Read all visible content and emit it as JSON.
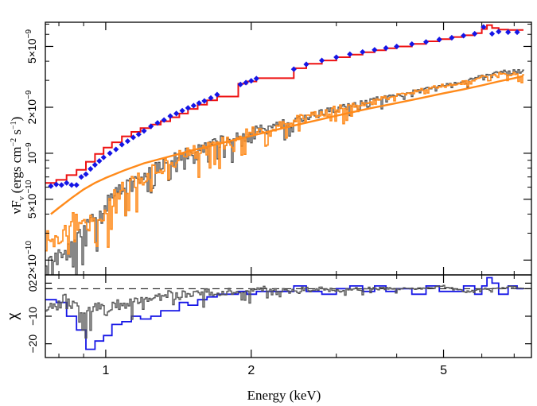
{
  "chart_data": [
    {
      "type": "line",
      "panel": "spectrum",
      "xlabel": "Energy (keV)",
      "ylabel_main": "νF",
      "ylabel_sub": "ν",
      "ylabel_units": "(ergs cm",
      "ylabel_units_sup1": "−2",
      "ylabel_units_mid": " s",
      "ylabel_units_sup2": "−1",
      "ylabel_units_end": ")",
      "x_scale": "log",
      "y_scale": "log",
      "xlim": [
        0.75,
        7.6
      ],
      "ylim": [
        1.6e-10,
        7.2e-09
      ],
      "x_ticks": [
        {
          "value": 1,
          "label": "1"
        },
        {
          "value": 2,
          "label": "2"
        },
        {
          "value": 5,
          "label": "5"
        }
      ],
      "y_ticks": [
        {
          "value": 2e-10,
          "mant": "2×10",
          "exp": "−10"
        },
        {
          "value": 5e-10,
          "mant": "5×10",
          "exp": "−10"
        },
        {
          "value": 1e-09,
          "mant": "10",
          "exp": "−9"
        },
        {
          "value": 2e-09,
          "mant": "2×10",
          "exp": "−9"
        },
        {
          "value": 5e-09,
          "mant": "5×10",
          "exp": "−9"
        }
      ],
      "colors": {
        "blue_data": "#1515e6",
        "red_model": "#ee1111",
        "gray_data": "#555555",
        "orange_model": "#ff8a1a"
      },
      "series": [
        {
          "style": "blue-diamonds",
          "x": [
            0.77,
            0.79,
            0.81,
            0.83,
            0.85,
            0.87,
            0.89,
            0.91,
            0.93,
            0.95,
            0.97,
            0.99,
            1.02,
            1.05,
            1.08,
            1.11,
            1.14,
            1.17,
            1.2,
            1.24,
            1.28,
            1.32,
            1.36,
            1.4,
            1.44,
            1.48,
            1.52,
            1.56,
            1.6,
            1.65,
            1.7,
            1.9,
            1.95,
            2.0,
            2.05,
            2.45,
            2.6,
            2.8,
            3.0,
            3.2,
            3.4,
            3.6,
            3.8,
            4.0,
            4.3,
            4.6,
            4.9,
            5.2,
            5.5,
            5.8,
            6.05,
            6.3,
            6.5,
            6.8,
            7.1
          ],
          "y": [
            6.1e-10,
            6.25e-10,
            6.2e-10,
            6.4e-10,
            6.2e-10,
            6.2e-10,
            7e-10,
            7.3e-10,
            7.9e-10,
            8.4e-10,
            8.9e-10,
            9.4e-10,
            1e-09,
            1.06e-09,
            1.14e-09,
            1.2e-09,
            1.27e-09,
            1.33e-09,
            1.4e-09,
            1.5e-09,
            1.58e-09,
            1.65e-09,
            1.75e-09,
            1.82e-09,
            1.9e-09,
            1.98e-09,
            2.05e-09,
            2.13e-09,
            2.2e-09,
            2.3e-09,
            2.42e-09,
            2.82e-09,
            2.9e-09,
            2.98e-09,
            3.08e-09,
            3.55e-09,
            3.82e-09,
            4.05e-09,
            4.25e-09,
            4.45e-09,
            4.6e-09,
            4.75e-09,
            4.88e-09,
            5e-09,
            5.18e-09,
            5.35e-09,
            5.55e-09,
            5.7e-09,
            5.88e-09,
            6.05e-09,
            6.7e-09,
            6.05e-09,
            6.25e-09,
            6.2e-09,
            6.2e-09
          ]
        },
        {
          "style": "red-step",
          "x": [
            0.75,
            0.79,
            0.83,
            0.87,
            0.91,
            0.95,
            0.99,
            1.03,
            1.08,
            1.13,
            1.18,
            1.24,
            1.3,
            1.36,
            1.42,
            1.48,
            1.55,
            1.62,
            1.7,
            1.88,
            1.96,
            2.05,
            2.45,
            2.6,
            2.8,
            3.0,
            3.2,
            3.4,
            3.6,
            3.8,
            4.0,
            4.3,
            4.6,
            4.9,
            5.2,
            5.5,
            5.8,
            6.0,
            6.15,
            6.3,
            6.5,
            6.8,
            7.1
          ],
          "y": [
            6.4e-10,
            6.7e-10,
            7.2e-10,
            7.8e-10,
            8.8e-10,
            9.9e-10,
            1.09e-09,
            1.18e-09,
            1.29e-09,
            1.38e-09,
            1.46e-09,
            1.54e-09,
            1.62e-09,
            1.72e-09,
            1.82e-09,
            1.95e-09,
            2.08e-09,
            2.22e-09,
            2.35e-09,
            2.85e-09,
            2.95e-09,
            3.1e-09,
            3.6e-09,
            3.85e-09,
            4.05e-09,
            4.25e-09,
            4.42e-09,
            4.58e-09,
            4.72e-09,
            4.86e-09,
            5e-09,
            5.2e-09,
            5.4e-09,
            5.58e-09,
            5.76e-09,
            5.92e-09,
            6.1e-09,
            6.5e-09,
            6.9e-09,
            6.6e-09,
            6.45e-09,
            6.4e-09,
            6.4e-09
          ]
        },
        {
          "style": "gray-noisy-step",
          "x": [
            0.75,
            0.8,
            0.85,
            0.9,
            0.95,
            1.0,
            1.05,
            1.1,
            1.15,
            1.2,
            1.25,
            1.3,
            1.35,
            1.4,
            1.45,
            1.5,
            1.6,
            1.7,
            1.8,
            1.9,
            2.0,
            2.2,
            2.4,
            2.6,
            2.8,
            3.0,
            3.3,
            3.6,
            4.0,
            4.5,
            5.0,
            5.5,
            6.0,
            6.5,
            7.0,
            7.3
          ],
          "y": [
            2.1e-10,
            2.2e-10,
            2.35e-10,
            3.1e-10,
            3.8e-10,
            4.6e-10,
            5.4e-10,
            6.1e-10,
            6.6e-10,
            7.2e-10,
            7.8e-10,
            8.3e-10,
            8.8e-10,
            9.3e-10,
            9.8e-10,
            1.02e-09,
            1.1e-09,
            1.18e-09,
            1.24e-09,
            1.3e-09,
            1.38e-09,
            1.5e-09,
            1.62e-09,
            1.75e-09,
            1.85e-09,
            1.95e-09,
            2.1e-09,
            2.25e-09,
            2.4e-09,
            2.62e-09,
            2.8e-09,
            2.95e-09,
            3.2e-09,
            3.4e-09,
            3.5e-09,
            3.45e-09
          ]
        },
        {
          "style": "orange-noisy-step",
          "x": [
            0.75,
            0.8,
            0.85,
            0.9,
            0.95,
            1.0,
            1.05,
            1.1,
            1.15,
            1.2,
            1.25,
            1.3,
            1.35,
            1.4,
            1.45,
            1.5,
            1.6,
            1.7,
            1.8,
            1.9,
            2.0,
            2.2,
            2.4,
            2.6,
            2.8,
            3.0,
            3.3,
            3.6,
            4.0,
            4.5,
            5.0,
            5.5,
            6.0,
            6.5,
            7.0,
            7.3
          ],
          "y": [
            2.7e-10,
            2.9e-10,
            3.6e-10,
            3.2e-10,
            3.6e-10,
            4.4e-10,
            5.3e-10,
            6e-10,
            6.5e-10,
            7.1e-10,
            7.7e-10,
            8.2e-10,
            8.7e-10,
            9.2e-10,
            9.7e-10,
            1.01e-09,
            1.09e-09,
            1.17e-09,
            1.23e-09,
            1.29e-09,
            1.37e-09,
            1.49e-09,
            1.6e-09,
            1.73e-09,
            1.84e-09,
            1.94e-09,
            2.08e-09,
            2.23e-09,
            2.38e-09,
            2.6e-09,
            2.78e-09,
            2.92e-09,
            3.15e-09,
            3.3e-09,
            3.3e-09,
            3.2e-09
          ]
        },
        {
          "style": "orange-smooth",
          "x": [
            0.77,
            0.8,
            0.85,
            0.9,
            0.95,
            1.0,
            1.1,
            1.2,
            1.3,
            1.4,
            1.5,
            1.6,
            1.8,
            2.0,
            2.2,
            2.5,
            3.0,
            3.5,
            4.0,
            4.5,
            5.0,
            5.5,
            6.0,
            6.5,
            7.0,
            7.3
          ],
          "y": [
            4e-10,
            4.4e-10,
            5.1e-10,
            5.8e-10,
            6.4e-10,
            6.9e-10,
            7.8e-10,
            8.6e-10,
            9.2e-10,
            9.8e-10,
            1.04e-09,
            1.09e-09,
            1.2e-09,
            1.3e-09,
            1.4e-09,
            1.54e-09,
            1.76e-09,
            1.96e-09,
            2.13e-09,
            2.3e-09,
            2.47e-09,
            2.62e-09,
            2.78e-09,
            2.95e-09,
            3.1e-09,
            3.2e-09
          ]
        }
      ]
    },
    {
      "type": "line",
      "panel": "residuals",
      "ylabel": "χ",
      "x_scale": "log",
      "xlim": [
        0.75,
        7.6
      ],
      "ylim": [
        -25,
        5
      ],
      "x_ticks": [
        {
          "value": 1,
          "label": "1"
        },
        {
          "value": 2,
          "label": "2"
        },
        {
          "value": 5,
          "label": "5"
        }
      ],
      "y_ticks": [
        {
          "value": 2,
          "label": "2"
        },
        {
          "value": 0,
          "label": "0"
        },
        {
          "value": -10,
          "label": "−10"
        },
        {
          "value": -20,
          "label": "−20"
        }
      ],
      "zero_line": "dashed",
      "series": [
        {
          "style": "blue-step",
          "x": [
            0.75,
            0.79,
            0.83,
            0.87,
            0.91,
            0.95,
            0.99,
            1.03,
            1.08,
            1.13,
            1.18,
            1.24,
            1.3,
            1.36,
            1.42,
            1.48,
            1.55,
            1.62,
            1.7,
            1.88,
            1.96,
            2.05,
            2.45,
            2.6,
            2.8,
            3.0,
            3.2,
            3.4,
            3.6,
            3.8,
            4.0,
            4.3,
            4.6,
            4.9,
            5.2,
            5.5,
            5.8,
            6.0,
            6.15,
            6.3,
            6.5,
            6.8,
            7.1
          ],
          "y": [
            -4,
            -5,
            -10,
            -15,
            -22,
            -19,
            -17,
            -13,
            -12,
            -10,
            -11,
            -10,
            -8,
            -8,
            -5,
            -6,
            -4,
            -3,
            -2,
            -1,
            -2,
            -1,
            1,
            -1,
            -2,
            0,
            1,
            -1,
            1,
            -1,
            0,
            -2,
            1,
            -1,
            -1,
            1,
            -2,
            1,
            4,
            2,
            -2,
            1,
            0
          ]
        },
        {
          "style": "gray-noisy-step",
          "x": [
            0.75,
            0.8,
            0.85,
            0.9,
            0.95,
            1.0,
            1.05,
            1.1,
            1.15,
            1.2,
            1.25,
            1.3,
            1.35,
            1.4,
            1.45,
            1.5,
            1.6,
            1.7,
            1.8,
            1.9,
            2.0,
            2.2,
            2.4,
            2.6,
            2.8,
            3.0,
            3.3,
            3.6,
            4.0,
            4.5,
            5.0,
            5.5,
            6.0,
            6.5,
            7.0,
            7.3
          ],
          "y": [
            -6,
            -4,
            -3,
            -10,
            -6,
            -8,
            -5,
            -6,
            -4,
            -3,
            -4,
            -3,
            -2,
            -3,
            -2,
            -1,
            -1,
            -2,
            -1,
            -1,
            0,
            0,
            -1,
            0,
            0,
            -1,
            0,
            0,
            0,
            0,
            1,
            -1,
            0,
            0,
            1,
            0
          ]
        }
      ]
    }
  ]
}
